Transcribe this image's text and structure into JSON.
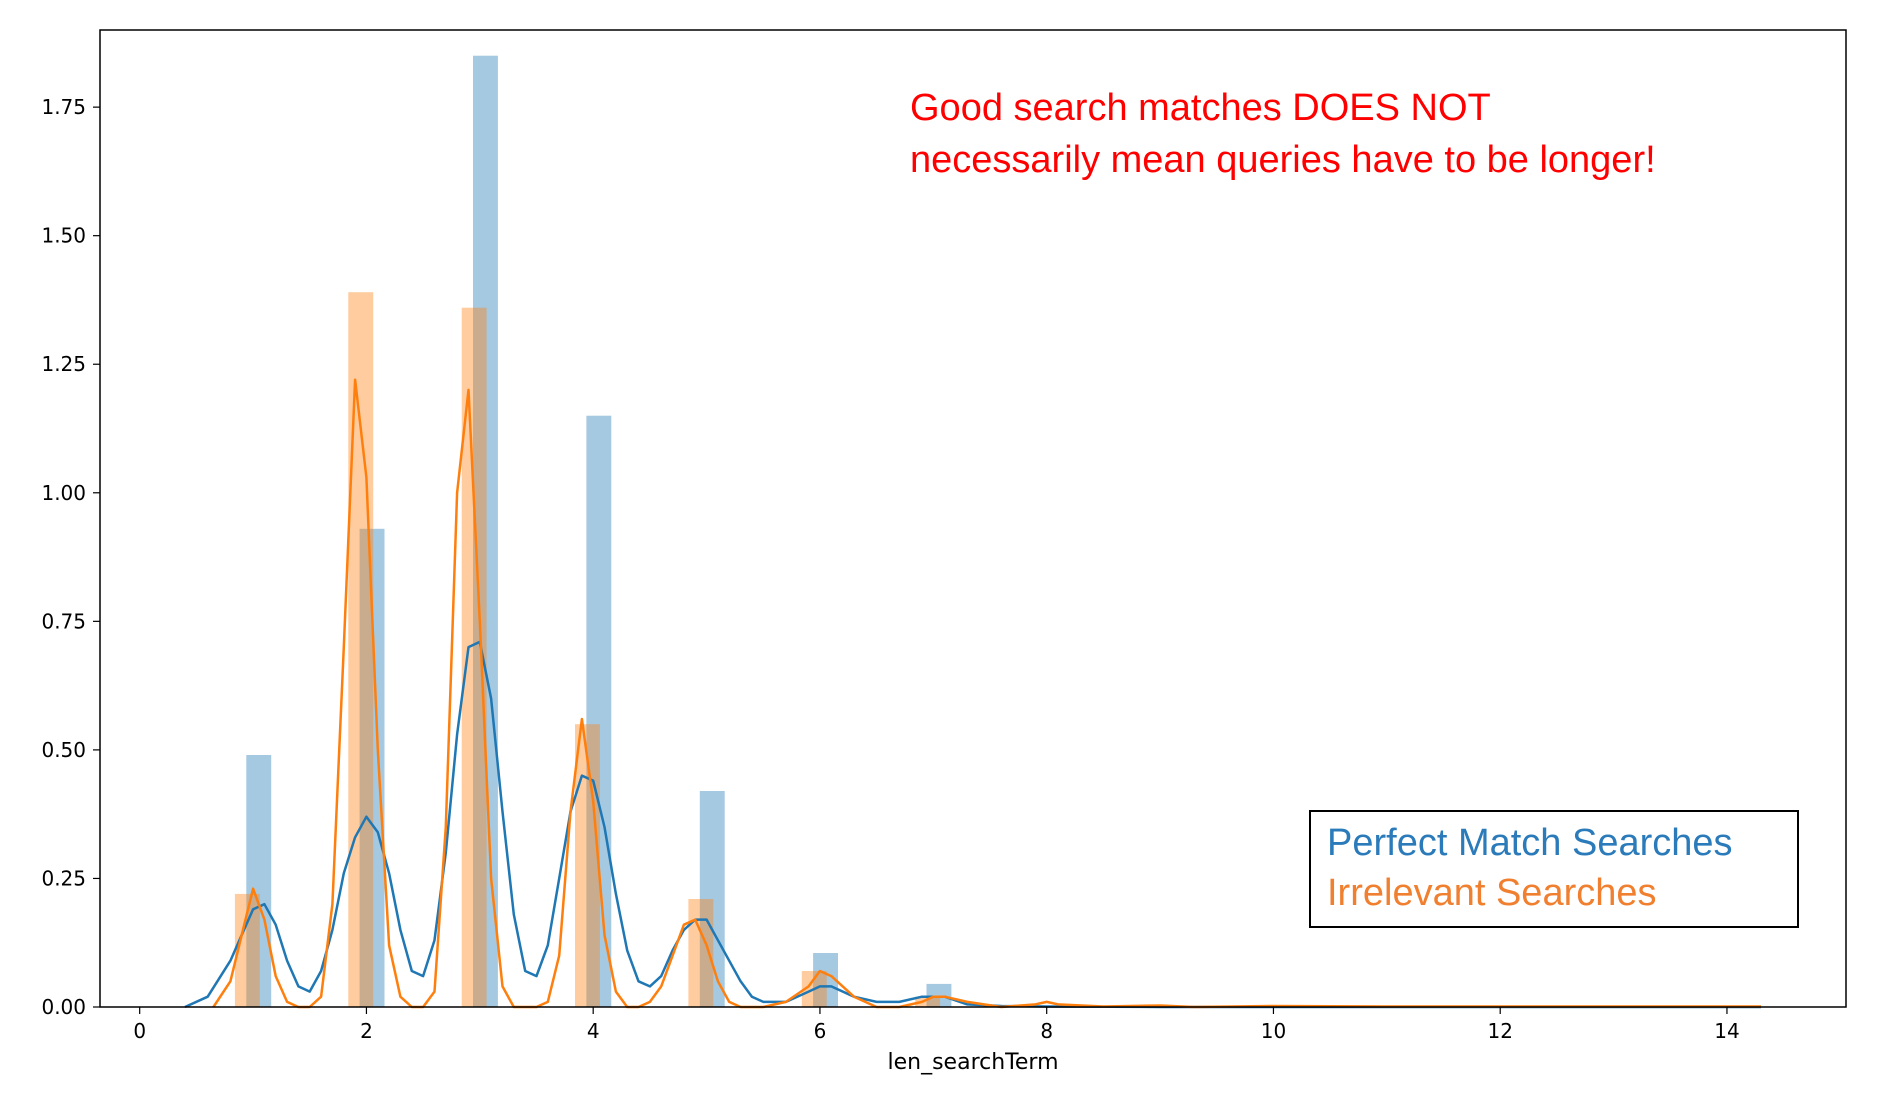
{
  "chart_data": {
    "type": "bar",
    "xlabel": "len_searchTerm",
    "ylabel": "",
    "xlim": [
      -0.35,
      15.05
    ],
    "ylim": [
      0,
      1.9
    ],
    "xticks": [
      0,
      2,
      4,
      6,
      8,
      10,
      12,
      14
    ],
    "yticks": [
      0.0,
      0.25,
      0.5,
      0.75,
      1.0,
      1.25,
      1.5,
      1.75
    ],
    "ytick_labels": [
      "0.00",
      "0.25",
      "0.50",
      "0.75",
      "1.00",
      "1.25",
      "1.50",
      "1.75"
    ],
    "grid": false,
    "legend_position": "bottom-right",
    "annotation": [
      "Good search matches DOES NOT",
      "necessarily mean queries have to be longer!"
    ],
    "series": [
      {
        "name": "Perfect Match Searches",
        "color": "#1f77b4",
        "hist_x": [
          1,
          2,
          3,
          4,
          5,
          6,
          7
        ],
        "hist_values": [
          0.49,
          0.93,
          1.85,
          1.15,
          0.42,
          0.105,
          0.045
        ],
        "kde_x": [
          0.4,
          0.6,
          0.8,
          0.9,
          1.0,
          1.1,
          1.2,
          1.3,
          1.4,
          1.5,
          1.6,
          1.7,
          1.8,
          1.9,
          2.0,
          2.1,
          2.2,
          2.3,
          2.4,
          2.5,
          2.6,
          2.7,
          2.8,
          2.9,
          3.0,
          3.1,
          3.2,
          3.3,
          3.4,
          3.5,
          3.6,
          3.7,
          3.8,
          3.9,
          4.0,
          4.1,
          4.2,
          4.3,
          4.4,
          4.5,
          4.6,
          4.7,
          4.8,
          4.9,
          5.0,
          5.1,
          5.2,
          5.3,
          5.4,
          5.5,
          5.7,
          5.9,
          6.0,
          6.1,
          6.3,
          6.5,
          6.7,
          6.9,
          7.0,
          7.1,
          7.3,
          7.6,
          8.0,
          9.0,
          10.0,
          11.0,
          12.0,
          13.0,
          14.3
        ],
        "kde_values": [
          0.0,
          0.02,
          0.09,
          0.14,
          0.19,
          0.2,
          0.16,
          0.09,
          0.04,
          0.03,
          0.07,
          0.15,
          0.26,
          0.33,
          0.37,
          0.34,
          0.26,
          0.15,
          0.07,
          0.06,
          0.13,
          0.3,
          0.53,
          0.7,
          0.71,
          0.6,
          0.38,
          0.18,
          0.07,
          0.06,
          0.12,
          0.25,
          0.38,
          0.45,
          0.44,
          0.35,
          0.22,
          0.11,
          0.05,
          0.04,
          0.06,
          0.11,
          0.15,
          0.17,
          0.17,
          0.13,
          0.09,
          0.05,
          0.02,
          0.01,
          0.01,
          0.03,
          0.04,
          0.04,
          0.02,
          0.01,
          0.01,
          0.02,
          0.02,
          0.02,
          0.005,
          0.002,
          0.001,
          0.0,
          0.0,
          0.0,
          0.0,
          0.0,
          0.0
        ]
      },
      {
        "name": "Irrelevant Searches",
        "color": "#ff7f0e",
        "hist_x": [
          1,
          2,
          3,
          4,
          5,
          6,
          7
        ],
        "hist_values": [
          0.22,
          1.39,
          1.36,
          0.55,
          0.21,
          0.07,
          0.02
        ],
        "kde_x": [
          0.65,
          0.8,
          0.9,
          1.0,
          1.1,
          1.2,
          1.3,
          1.4,
          1.5,
          1.6,
          1.7,
          1.8,
          1.9,
          2.0,
          2.1,
          2.2,
          2.3,
          2.4,
          2.5,
          2.6,
          2.7,
          2.8,
          2.9,
          3.0,
          3.1,
          3.2,
          3.3,
          3.4,
          3.5,
          3.6,
          3.7,
          3.8,
          3.9,
          4.0,
          4.1,
          4.2,
          4.3,
          4.4,
          4.5,
          4.6,
          4.7,
          4.8,
          4.9,
          5.0,
          5.1,
          5.2,
          5.3,
          5.4,
          5.5,
          5.7,
          5.9,
          6.0,
          6.1,
          6.3,
          6.5,
          6.7,
          6.9,
          7.0,
          7.1,
          7.3,
          7.6,
          7.9,
          8.0,
          8.1,
          8.5,
          9.0,
          9.3,
          10.0,
          11.0,
          12.0,
          13.0,
          14.3
        ],
        "kde_values": [
          0.0,
          0.05,
          0.14,
          0.23,
          0.17,
          0.06,
          0.01,
          0.0,
          0.0,
          0.02,
          0.2,
          0.7,
          1.22,
          1.03,
          0.5,
          0.12,
          0.02,
          0.0,
          0.0,
          0.03,
          0.35,
          1.0,
          1.2,
          0.75,
          0.25,
          0.04,
          0.0,
          0.0,
          0.0,
          0.01,
          0.1,
          0.38,
          0.56,
          0.4,
          0.14,
          0.03,
          0.0,
          0.0,
          0.01,
          0.04,
          0.1,
          0.16,
          0.17,
          0.12,
          0.05,
          0.01,
          0.0,
          0.0,
          0.0,
          0.01,
          0.04,
          0.07,
          0.06,
          0.02,
          0.0,
          0.0,
          0.01,
          0.02,
          0.02,
          0.01,
          0.0,
          0.005,
          0.01,
          0.005,
          0.001,
          0.003,
          0.0,
          0.002,
          0.001,
          0.001,
          0.001,
          0.001
        ]
      }
    ]
  }
}
